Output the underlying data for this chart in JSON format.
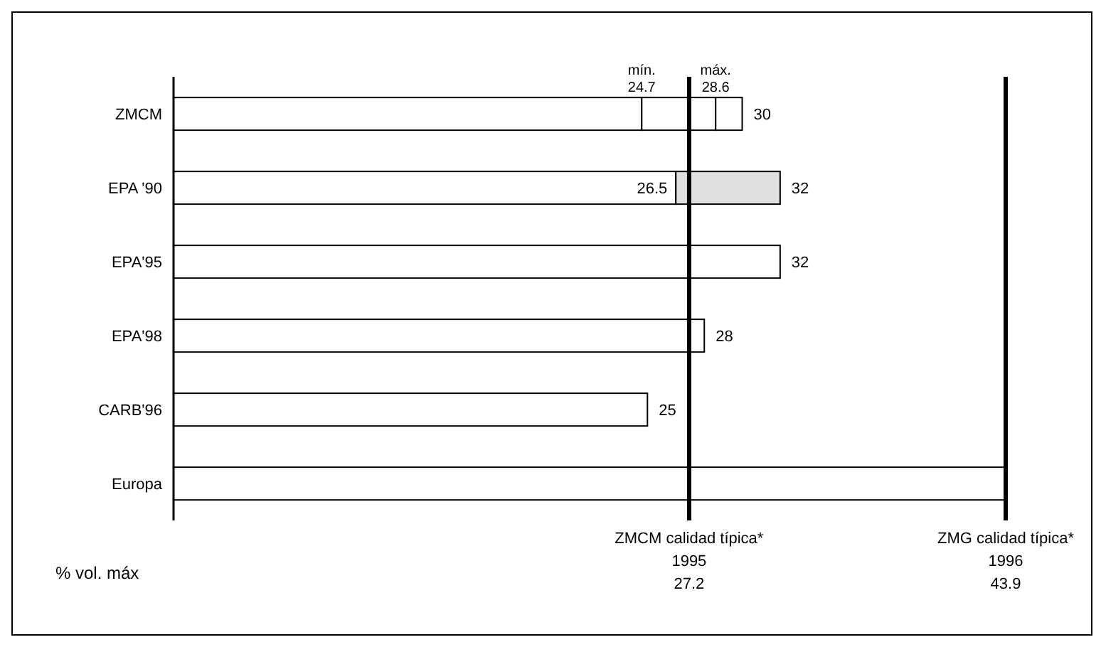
{
  "chart_data": {
    "type": "bar",
    "orientation": "horizontal",
    "stacked": true,
    "categories": [
      "ZMCM",
      "EPA '90",
      "EPA'95",
      "EPA'98",
      "CARB'96",
      "Europa"
    ],
    "series": [
      {
        "color": "#ffffff",
        "values": [
          24.7,
          26.5,
          32,
          28,
          25,
          43.9
        ],
        "value_labels": [
          null,
          "26.5",
          null,
          null,
          null,
          null
        ]
      },
      {
        "colors": [
          "#ffffff",
          "#e0e0e0",
          null,
          null,
          null,
          null
        ],
        "values": [
          3.9,
          5.5,
          null,
          null,
          null,
          null
        ]
      },
      {
        "color": "#ffffff",
        "values": [
          1.4,
          null,
          null,
          null,
          null,
          null
        ]
      }
    ],
    "totals": [
      "30",
      "32",
      "32",
      "28",
      "25",
      null
    ],
    "tick_labels": "y",
    "xlabel": "% vol. máx",
    "annotations": [
      {
        "text": "mín. 24.7",
        "x": 24.7,
        "y": "ZMCM"
      },
      {
        "text": "máx. 28.6",
        "x": 28.6,
        "y": "ZMCM"
      }
    ],
    "ref_lines": [
      {
        "axis": "x",
        "value": 27.2,
        "label": "ZMCM calidad típica*\n1995\n27.2"
      },
      {
        "axis": "x",
        "value": 43.9,
        "label": "ZMG calidad típica*\n1996\n43.9"
      }
    ]
  }
}
